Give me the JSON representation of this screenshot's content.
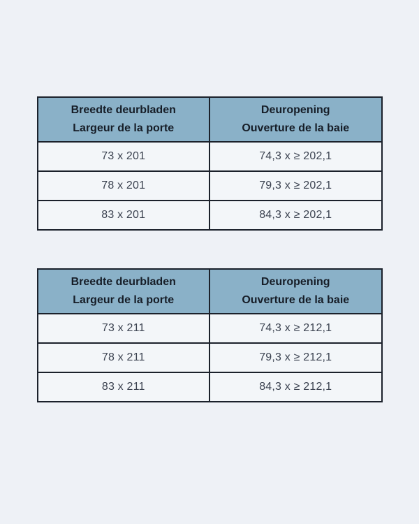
{
  "colors": {
    "page_bg": "#eef1f6",
    "cell_bg": "#f3f6f9",
    "header_bg": "#8ab1c8",
    "border": "#1b212b",
    "header_text": "#161d27",
    "body_text": "#3b4250"
  },
  "tables": [
    {
      "header": [
        {
          "line1": "Breedte deurbladen",
          "line2": "Largeur de la porte"
        },
        {
          "line1": "Deuropening",
          "line2": "Ouverture de la baie"
        }
      ],
      "rows": [
        {
          "door_width": "73 x 201",
          "opening": "74,3 x ≥ 202,1"
        },
        {
          "door_width": "78 x 201",
          "opening": "79,3 x ≥ 202,1"
        },
        {
          "door_width": "83 x 201",
          "opening": "84,3 x ≥ 202,1"
        }
      ]
    },
    {
      "header": [
        {
          "line1": "Breedte deurbladen",
          "line2": "Largeur de la porte"
        },
        {
          "line1": "Deuropening",
          "line2": "Ouverture de la baie"
        }
      ],
      "rows": [
        {
          "door_width": "73 x 211",
          "opening": "74,3 x ≥ 212,1"
        },
        {
          "door_width": "78 x 211",
          "opening": "79,3 x ≥ 212,1"
        },
        {
          "door_width": "83 x 211",
          "opening": "84,3 x ≥ 212,1"
        }
      ]
    }
  ]
}
